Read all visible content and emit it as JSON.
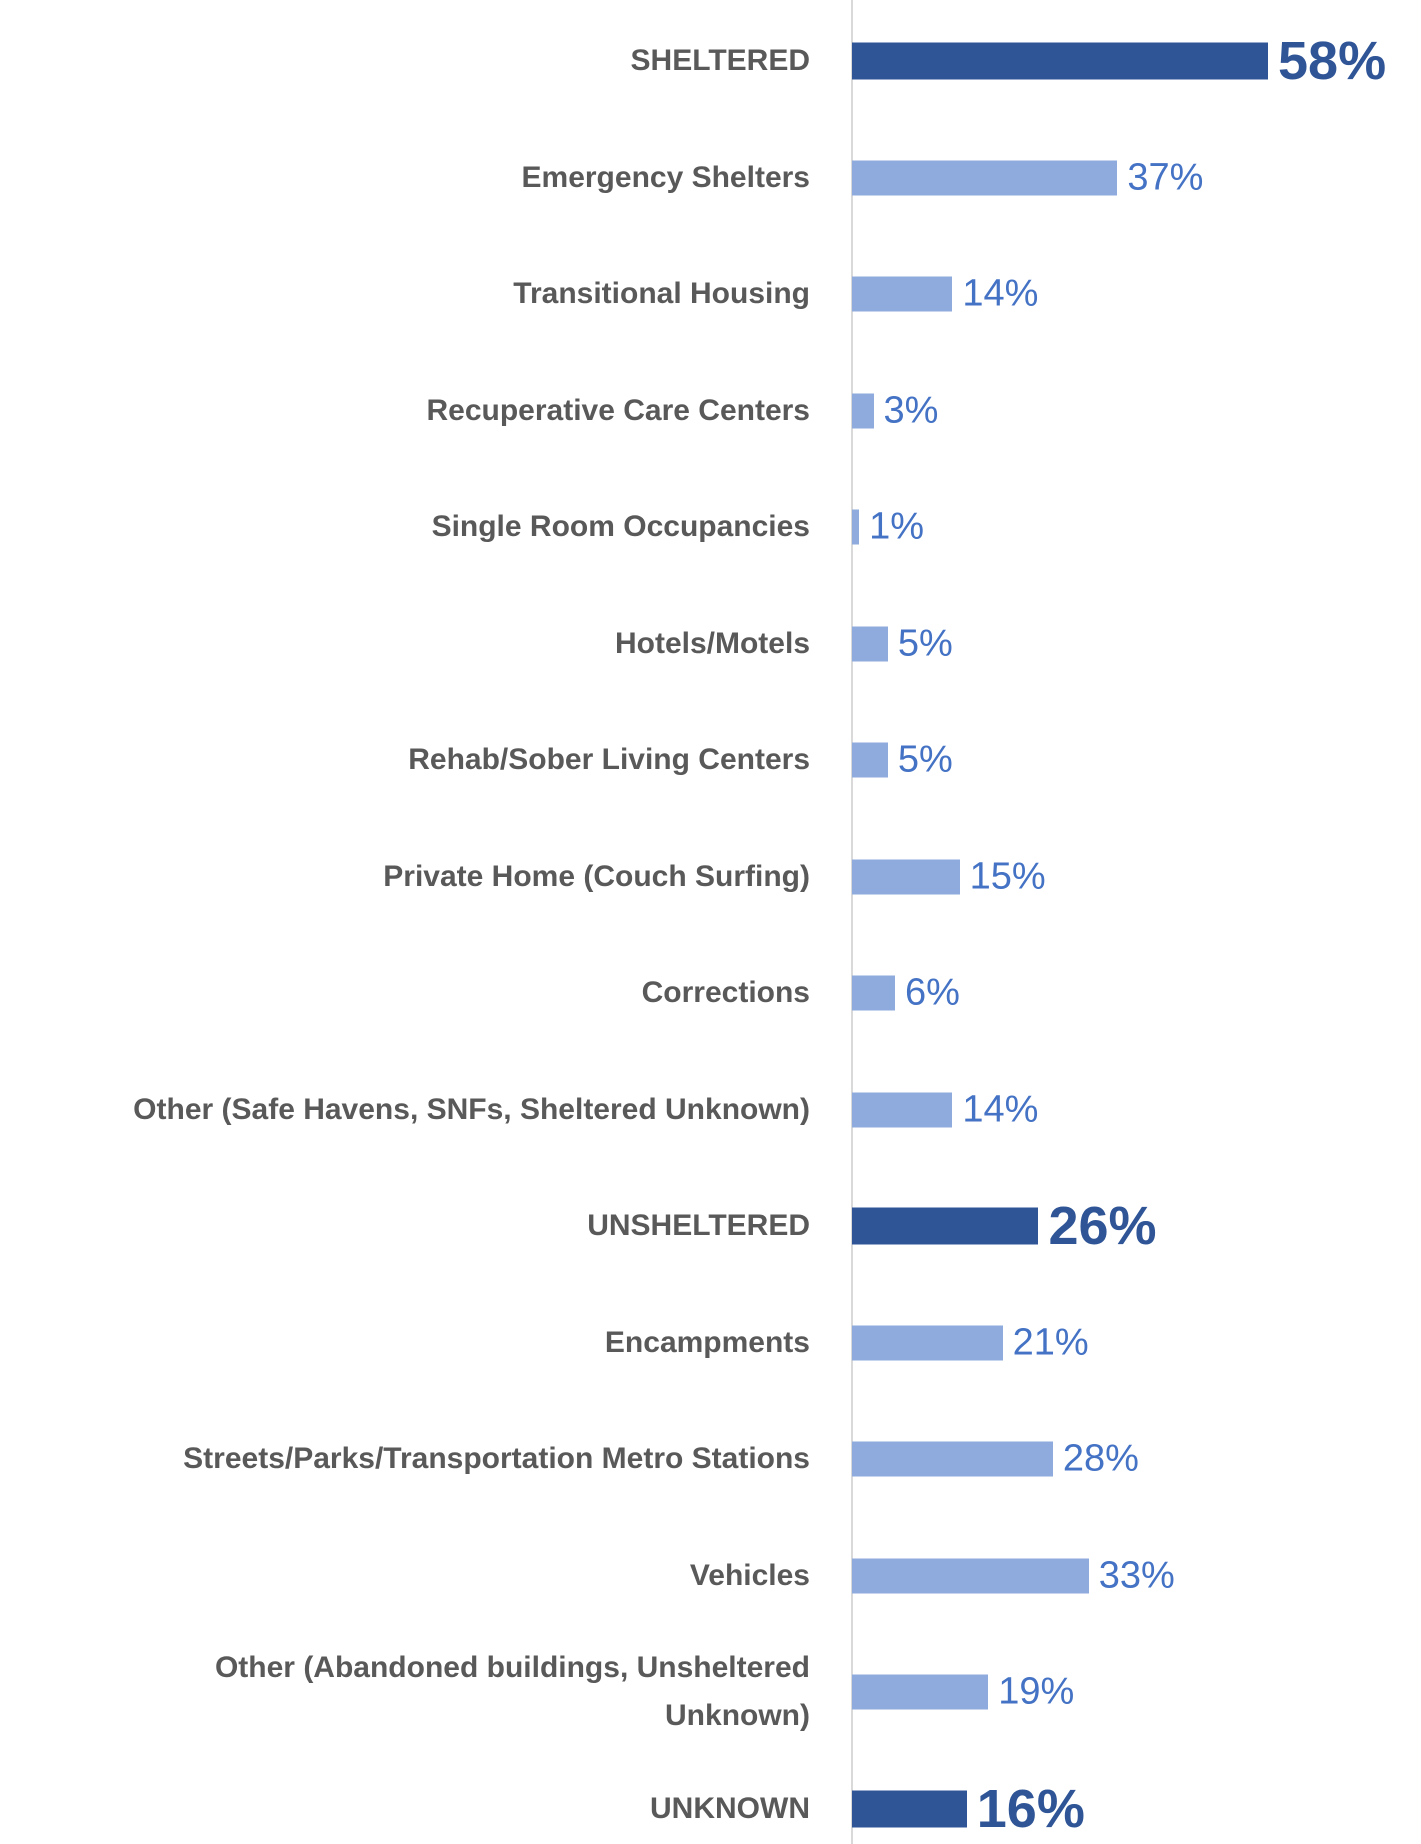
{
  "chart_data": {
    "type": "bar",
    "orientation": "horizontal",
    "categories": [
      "SHELTERED",
      "Emergency Shelters",
      "Transitional Housing",
      "Recuperative Care Centers",
      "Single Room Occupancies",
      "Hotels/Motels",
      "Rehab/Sober Living Centers",
      "Private Home (Couch Surfing)",
      "Corrections",
      "Other (Safe Havens, SNFs, Sheltered Unknown)",
      "UNSHELTERED",
      "Encampments",
      "Streets/Parks/Transportation Metro Stations",
      "Vehicles",
      "Other (Abandoned buildings, Unsheltered\nUnknown)",
      "UNKNOWN"
    ],
    "values": [
      58,
      37,
      14,
      3,
      1,
      5,
      5,
      15,
      6,
      14,
      26,
      21,
      28,
      33,
      19,
      16
    ],
    "value_labels": [
      "58%",
      "37%",
      "14%",
      "3%",
      "1%",
      "5%",
      "5%",
      "15%",
      "6%",
      "14%",
      "26%",
      "21%",
      "28%",
      "33%",
      "19%",
      "16%"
    ],
    "colors": [
      "#2f5597",
      "#8faadc",
      "#8faadc",
      "#8faadc",
      "#8faadc",
      "#8faadc",
      "#8faadc",
      "#8faadc",
      "#8faadc",
      "#8faadc",
      "#2f5597",
      "#8faadc",
      "#8faadc",
      "#8faadc",
      "#8faadc",
      "#2f5597"
    ]
  }
}
